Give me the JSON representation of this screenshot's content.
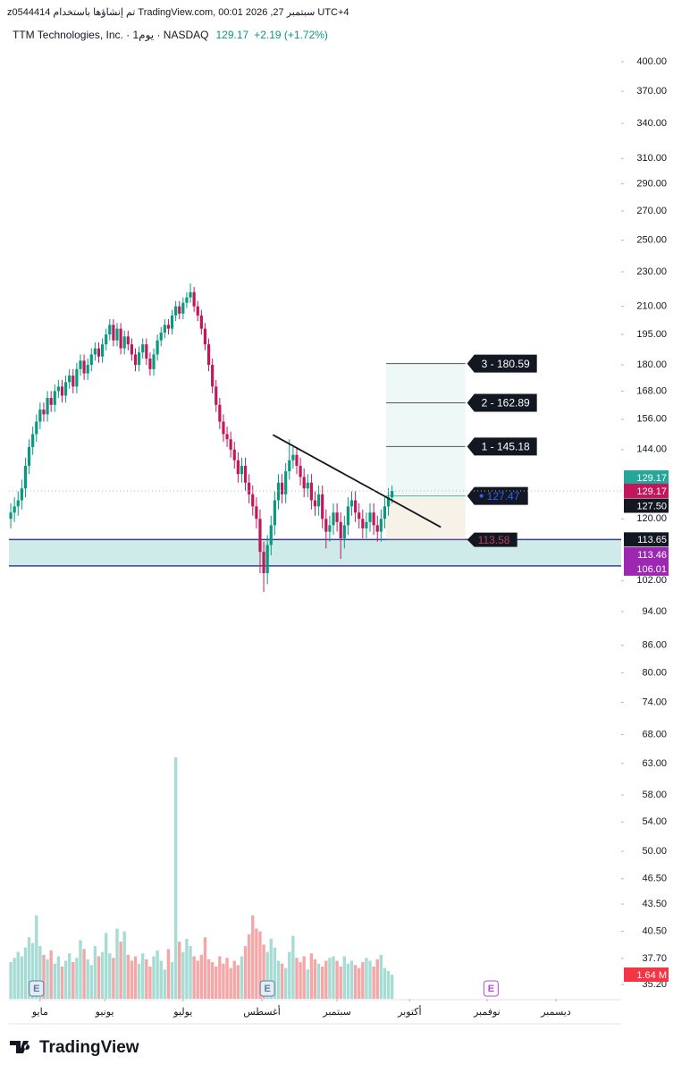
{
  "header": {
    "watermark": "z0544414 تم إنشاؤها باستخدام TradingView.com, 00:01 2026 ,27 سبتمبر UTC+4"
  },
  "chart_data": {
    "type": "candlestick",
    "title": "TTM Technologies, Inc. · 1يوم · NASDAQ",
    "last_price": 129.17,
    "change_label": "+2.19 (+1.72%)",
    "xlim": [
      -0.5,
      166.5
    ],
    "xticks": [
      {
        "value": 8,
        "label": "مايو"
      },
      {
        "value": 25.6,
        "label": "يونيو"
      },
      {
        "value": 47,
        "label": "يوليو"
      },
      {
        "value": 68.5,
        "label": "أغسطس"
      },
      {
        "value": 89,
        "label": "سبتمبر"
      },
      {
        "value": 108.8,
        "label": "أكتوبر"
      },
      {
        "value": 129.9,
        "label": "نوفمبر"
      },
      {
        "value": 148.7,
        "label": "ديسمبر"
      }
    ],
    "ylim": [
      33.9,
      418.3
    ],
    "log_scale": true,
    "yticks": [
      {
        "value": 400,
        "label": "400.00"
      },
      {
        "value": 370,
        "label": "370.00"
      },
      {
        "value": 340,
        "label": "340.00"
      },
      {
        "value": 310,
        "label": "310.00"
      },
      {
        "value": 290,
        "label": "290.00"
      },
      {
        "value": 270,
        "label": "270.00"
      },
      {
        "value": 250,
        "label": "250.00"
      },
      {
        "value": 230,
        "label": "230.00"
      },
      {
        "value": 210,
        "label": "210.00"
      },
      {
        "value": 195,
        "label": "195.00"
      },
      {
        "value": 180,
        "label": "180.00"
      },
      {
        "value": 168,
        "label": "168.00"
      },
      {
        "value": 156,
        "label": "156.00"
      },
      {
        "value": 144,
        "label": "144.00"
      },
      {
        "value": 120,
        "label": "120.00"
      },
      {
        "value": 102,
        "label": "102.00"
      },
      {
        "value": 94,
        "label": "94.00"
      },
      {
        "value": 86,
        "label": "86.00"
      },
      {
        "value": 80,
        "label": "80.00"
      },
      {
        "value": 74,
        "label": "74.00"
      },
      {
        "value": 68,
        "label": "68.00"
      },
      {
        "value": 63,
        "label": "63.00"
      },
      {
        "value": 58,
        "label": "58.00"
      },
      {
        "value": 54,
        "label": "54.00"
      },
      {
        "value": 50,
        "label": "50.00"
      },
      {
        "value": 46.5,
        "label": "46.50"
      },
      {
        "value": 43.5,
        "label": "43.50"
      },
      {
        "value": 40.5,
        "label": "40.50"
      },
      {
        "value": 37.7,
        "label": "37.70"
      },
      {
        "value": 35.2,
        "label": "35.20"
      }
    ],
    "up_color": "#089981",
    "down_color": "#c2185b",
    "open": [
      120,
      122,
      124,
      126,
      130,
      138,
      145,
      150,
      155,
      160,
      158,
      165,
      162,
      168,
      170,
      166,
      172,
      175,
      170,
      178,
      182,
      176,
      180,
      185,
      188,
      184,
      190,
      195,
      200,
      192,
      198,
      188,
      194,
      190,
      185,
      180,
      186,
      190,
      183,
      178,
      185,
      192,
      196,
      200,
      198,
      205,
      210,
      206,
      212,
      215,
      218,
      210,
      205,
      198,
      190,
      180,
      170,
      162,
      155,
      150,
      148,
      144,
      140,
      135,
      138,
      132,
      128,
      124,
      120,
      110,
      104,
      112,
      118,
      126,
      132,
      128,
      136,
      140,
      142,
      138,
      134,
      130,
      132,
      126,
      124,
      128,
      120,
      116,
      118,
      122,
      119,
      114,
      118,
      124,
      126,
      122,
      120,
      117,
      119,
      122,
      118,
      116,
      120,
      124,
      126.98
    ],
    "high": [
      125,
      127,
      129,
      133,
      141,
      148,
      153,
      158,
      163,
      163,
      168,
      168,
      171,
      173,
      173,
      175,
      178,
      178,
      181,
      185,
      185,
      183,
      188,
      191,
      191,
      193,
      198,
      203,
      203,
      201,
      201,
      197,
      197,
      193,
      188,
      189,
      193,
      193,
      186,
      188,
      195,
      199,
      203,
      203,
      208,
      213,
      213,
      215,
      218,
      223,
      221,
      213,
      208,
      201,
      193,
      183,
      173,
      165,
      158,
      153,
      151,
      147,
      143,
      141,
      141,
      135,
      131,
      127,
      123,
      113,
      115,
      121,
      129,
      135,
      135,
      139,
      148,
      145,
      145,
      141,
      137,
      135,
      135,
      129,
      131,
      131,
      123,
      121,
      125,
      125,
      122,
      121,
      127,
      129,
      129,
      125,
      123,
      122,
      125,
      125,
      121,
      123,
      127,
      130,
      131
    ],
    "low": [
      117,
      119,
      121,
      123,
      127,
      135,
      142,
      147,
      152,
      155,
      155,
      159,
      159,
      165,
      163,
      163,
      169,
      167,
      167,
      175,
      173,
      173,
      177,
      182,
      181,
      181,
      187,
      192,
      189,
      189,
      185,
      185,
      187,
      182,
      177,
      177,
      183,
      180,
      175,
      175,
      182,
      189,
      193,
      195,
      195,
      202,
      203,
      203,
      209,
      212,
      207,
      202,
      195,
      187,
      177,
      167,
      159,
      152,
      147,
      145,
      141,
      137,
      132,
      132,
      129,
      125,
      121,
      117,
      104,
      99,
      101,
      109,
      115,
      123,
      125,
      125,
      133,
      137,
      135,
      131,
      127,
      127,
      123,
      121,
      121,
      117,
      111,
      113,
      115,
      116,
      108,
      111,
      115,
      121,
      119,
      117,
      114,
      114,
      116,
      115,
      113,
      113,
      117,
      121,
      125
    ],
    "close": [
      122,
      124,
      126,
      130,
      138,
      145,
      150,
      155,
      160,
      158,
      165,
      162,
      168,
      170,
      166,
      172,
      175,
      170,
      178,
      182,
      176,
      180,
      185,
      188,
      184,
      190,
      195,
      200,
      192,
      198,
      188,
      194,
      190,
      185,
      180,
      186,
      190,
      183,
      178,
      185,
      192,
      196,
      200,
      198,
      205,
      210,
      206,
      212,
      215,
      218,
      210,
      205,
      198,
      190,
      180,
      170,
      162,
      155,
      150,
      148,
      144,
      140,
      135,
      138,
      132,
      128,
      124,
      120,
      110,
      104,
      112,
      118,
      126,
      132,
      128,
      136,
      140,
      142,
      138,
      134,
      130,
      132,
      126,
      124,
      128,
      120,
      116,
      118,
      122,
      119,
      114,
      118,
      124,
      126,
      122,
      120,
      117,
      119,
      122,
      118,
      116,
      120,
      124,
      126.98,
      129.17
    ],
    "volume": {
      "values": [
        2.5,
        2.8,
        3.2,
        2.9,
        3.5,
        4.2,
        3.8,
        5.7,
        3.6,
        3.0,
        2.7,
        3.3,
        2.4,
        2.9,
        2.2,
        2.6,
        3.1,
        2.5,
        2.8,
        4.0,
        3.4,
        2.7,
        2.3,
        3.6,
        2.9,
        3.2,
        4.5,
        3.1,
        2.8,
        4.8,
        3.9,
        4.6,
        3.0,
        2.6,
        2.9,
        2.4,
        3.1,
        2.7,
        2.2,
        2.9,
        3.3,
        2.6,
        2.0,
        3.4,
        2.5,
        16.5,
        3.9,
        3.2,
        4.1,
        3.6,
        2.9,
        2.6,
        3.0,
        4.2,
        2.7,
        2.5,
        2.2,
        2.9,
        2.4,
        2.8,
        2.1,
        2.6,
        2.3,
        2.9,
        3.6,
        4.4,
        5.7,
        4.8,
        4.6,
        3.7,
        3.2,
        4.1,
        3.5,
        2.6,
        2.4,
        2.1,
        3.2,
        4.3,
        2.8,
        2.5,
        2.9,
        2.0,
        3.1,
        2.7,
        2.4,
        2.2,
        2.6,
        2.8,
        2.9,
        2.6,
        2.2,
        2.9,
        2.4,
        2.6,
        2.3,
        2.1,
        2.5,
        2.8,
        2.6,
        2.2,
        2.7,
        3.0,
        2.1,
        1.9,
        1.64
      ],
      "ylim": [
        0,
        16.8
      ],
      "up_color": "#a6dcd4",
      "down_color": "#f4a7a7",
      "last_label": {
        "value": 1.64,
        "label": "1.64 M"
      }
    },
    "price_labels": [
      {
        "value": 129.17,
        "color": "#26a69a"
      },
      {
        "value": 129.17,
        "color": "#c2185b"
      },
      {
        "value": 127.5,
        "label": "127.50",
        "color": "#131722"
      },
      {
        "value": 113.65,
        "color": "#131722"
      },
      {
        "value": 113.46,
        "color": "#9c27b0"
      },
      {
        "value": 106.01,
        "color": "#9c27b0"
      }
    ],
    "zone": {
      "top": 113.65,
      "bottom": 106.01
    },
    "trendline": {
      "start": [
        71.5,
        149.7
      ],
      "end": [
        117.3,
        117.4
      ]
    },
    "position_tool": {
      "start": 102.4,
      "end": 124,
      "entry": {
        "value": 127.47,
        "label": "127.47"
      },
      "stop": {
        "value": 113.58,
        "label": "113.58"
      },
      "targets": [
        {
          "value": 145.18,
          "label": "1 - 145.18"
        },
        {
          "value": 162.89,
          "label": "2 - 162.89"
        },
        {
          "value": 180.59,
          "label": "3 - 180.59"
        }
      ]
    },
    "earnings": [
      {
        "x": 7,
        "label": "E",
        "color": "#5d7f9e"
      },
      {
        "x": 70,
        "label": "E",
        "color": "#5d7f9e"
      },
      {
        "x": 131,
        "label": "E",
        "color": "#b44bd8"
      }
    ]
  },
  "footer": {
    "brand": "TradingView"
  }
}
